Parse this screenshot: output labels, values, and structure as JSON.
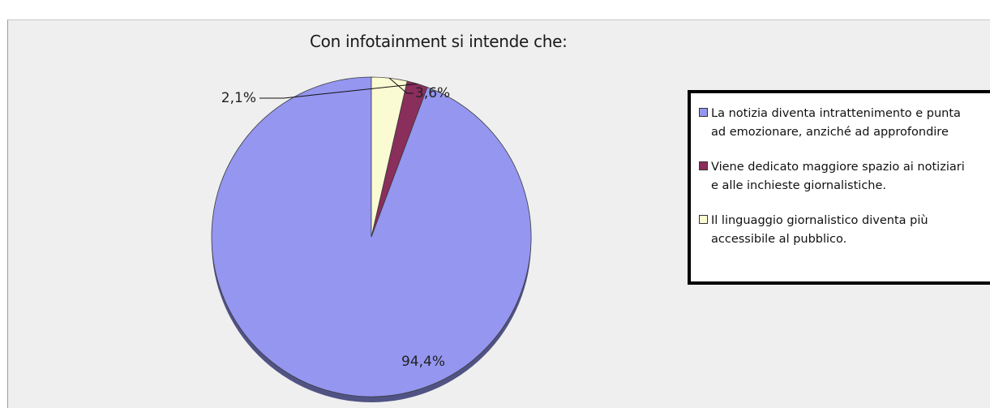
{
  "chart_data": {
    "type": "pie",
    "title": "Con infotainment si intende che:",
    "slices": [
      {
        "label": "La notizia diventa intrattenimento e punta\nad emozionare, anziché ad approfondire",
        "value": 94.4,
        "display": "94,4%",
        "color": "#9496f0"
      },
      {
        "label": "Viene dedicato maggiore spazio ai notiziari\ne alle inchieste giornalistiche.",
        "value": 2.1,
        "display": "2,1%",
        "color": "#8a2e5c"
      },
      {
        "label": "Il linguaggio giornalistico diventa più\naccessibile al pubblico.",
        "value": 3.6,
        "display": "3,6%",
        "color": "#fbfbd3"
      }
    ],
    "legend_position": "right"
  }
}
